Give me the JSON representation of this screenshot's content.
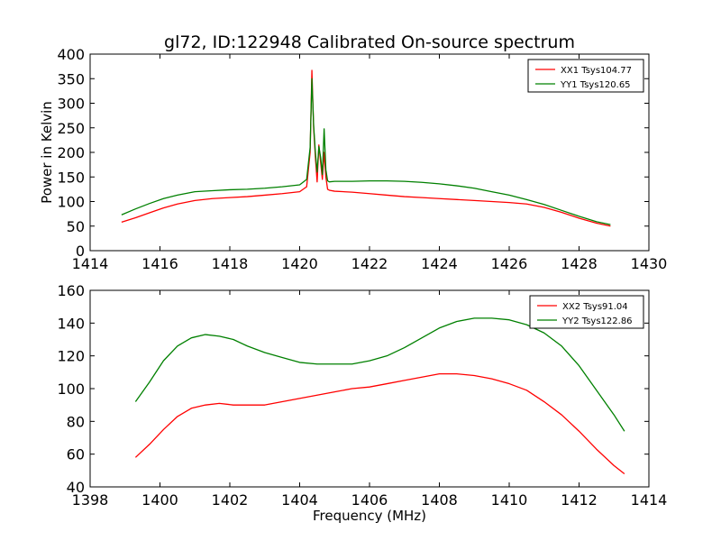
{
  "title": "gl72, ID:122948 Calibrated On-source spectrum",
  "chart_data": [
    {
      "type": "line",
      "xlabel": "",
      "ylabel": "Power in Kelvin",
      "xlim": [
        1414,
        1430
      ],
      "ylim": [
        0,
        400
      ],
      "xticks": [
        "1414",
        "1416",
        "1418",
        "1420",
        "1422",
        "1424",
        "1426",
        "1428",
        "1430"
      ],
      "yticks": [
        "0",
        "50",
        "100",
        "150",
        "200",
        "250",
        "300",
        "350",
        "400"
      ],
      "legend_position": "top-right",
      "series": [
        {
          "name": "XX1 Tsys104.77",
          "color": "#ff0000",
          "x": [
            1414.9,
            1415.3,
            1415.7,
            1416.1,
            1416.5,
            1417.0,
            1417.5,
            1418.0,
            1418.5,
            1419.0,
            1419.5,
            1420.0,
            1420.2,
            1420.3,
            1420.35,
            1420.4,
            1420.45,
            1420.5,
            1420.55,
            1420.6,
            1420.65,
            1420.7,
            1420.75,
            1420.8,
            1420.85,
            1421.0,
            1421.5,
            1422.0,
            1422.5,
            1423.0,
            1423.5,
            1424.0,
            1424.5,
            1425.0,
            1425.5,
            1426.0,
            1426.5,
            1427.0,
            1427.5,
            1428.0,
            1428.5,
            1428.9
          ],
          "y": [
            58,
            67,
            77,
            87,
            95,
            102,
            106,
            108,
            110,
            113,
            116,
            120,
            130,
            200,
            367,
            250,
            190,
            140,
            215,
            180,
            145,
            200,
            150,
            125,
            123,
            121,
            119,
            116,
            113,
            110,
            108,
            106,
            104,
            102,
            100,
            98,
            95,
            88,
            78,
            66,
            56,
            50
          ]
        },
        {
          "name": "YY1 Tsys120.65",
          "color": "#008000",
          "x": [
            1414.9,
            1415.3,
            1415.7,
            1416.1,
            1416.5,
            1417.0,
            1417.5,
            1418.0,
            1418.5,
            1419.0,
            1419.5,
            1420.0,
            1420.2,
            1420.3,
            1420.35,
            1420.4,
            1420.45,
            1420.5,
            1420.55,
            1420.6,
            1420.65,
            1420.7,
            1420.75,
            1420.8,
            1420.85,
            1421.0,
            1421.5,
            1422.0,
            1422.5,
            1423.0,
            1423.5,
            1424.0,
            1424.5,
            1425.0,
            1425.5,
            1426.0,
            1426.5,
            1427.0,
            1427.5,
            1428.0,
            1428.5,
            1428.9
          ],
          "y": [
            73,
            85,
            96,
            106,
            113,
            120,
            122,
            124,
            125,
            127,
            130,
            134,
            145,
            210,
            350,
            255,
            200,
            160,
            212,
            190,
            155,
            248,
            165,
            142,
            140,
            141,
            141,
            142,
            142,
            141,
            139,
            136,
            132,
            127,
            120,
            113,
            104,
            94,
            82,
            70,
            59,
            53
          ]
        }
      ]
    },
    {
      "type": "line",
      "xlabel": "Frequency (MHz)",
      "ylabel": "",
      "xlim": [
        1398,
        1414
      ],
      "ylim": [
        40,
        160
      ],
      "xticks": [
        "1398",
        "1400",
        "1402",
        "1404",
        "1406",
        "1408",
        "1410",
        "1412",
        "1414"
      ],
      "yticks": [
        "40",
        "60",
        "80",
        "100",
        "120",
        "140",
        "160"
      ],
      "legend_position": "top-right",
      "series": [
        {
          "name": "XX2 Tsys91.04",
          "color": "#ff0000",
          "x": [
            1399.3,
            1399.7,
            1400.1,
            1400.5,
            1400.9,
            1401.3,
            1401.7,
            1402.1,
            1402.5,
            1403.0,
            1403.5,
            1404.0,
            1404.5,
            1405.0,
            1405.5,
            1406.0,
            1406.5,
            1407.0,
            1407.5,
            1408.0,
            1408.5,
            1409.0,
            1409.5,
            1410.0,
            1410.5,
            1411.0,
            1411.5,
            1412.0,
            1412.5,
            1413.0,
            1413.3
          ],
          "y": [
            58,
            66,
            75,
            83,
            88,
            90,
            91,
            90,
            90,
            90,
            92,
            94,
            96,
            98,
            100,
            101,
            103,
            105,
            107,
            109,
            109,
            108,
            106,
            103,
            99,
            92,
            84,
            74,
            63,
            53,
            48
          ]
        },
        {
          "name": "YY2 Tsys122.86",
          "color": "#008000",
          "x": [
            1399.3,
            1399.7,
            1400.1,
            1400.5,
            1400.9,
            1401.3,
            1401.7,
            1402.1,
            1402.5,
            1403.0,
            1403.5,
            1404.0,
            1404.5,
            1405.0,
            1405.5,
            1406.0,
            1406.5,
            1407.0,
            1407.5,
            1408.0,
            1408.5,
            1409.0,
            1409.5,
            1410.0,
            1410.5,
            1411.0,
            1411.5,
            1412.0,
            1412.5,
            1413.0,
            1413.3
          ],
          "y": [
            92,
            104,
            117,
            126,
            131,
            133,
            132,
            130,
            126,
            122,
            119,
            116,
            115,
            115,
            115,
            117,
            120,
            125,
            131,
            137,
            141,
            143,
            143,
            142,
            139,
            134,
            126,
            114,
            99,
            84,
            74
          ]
        }
      ]
    }
  ]
}
